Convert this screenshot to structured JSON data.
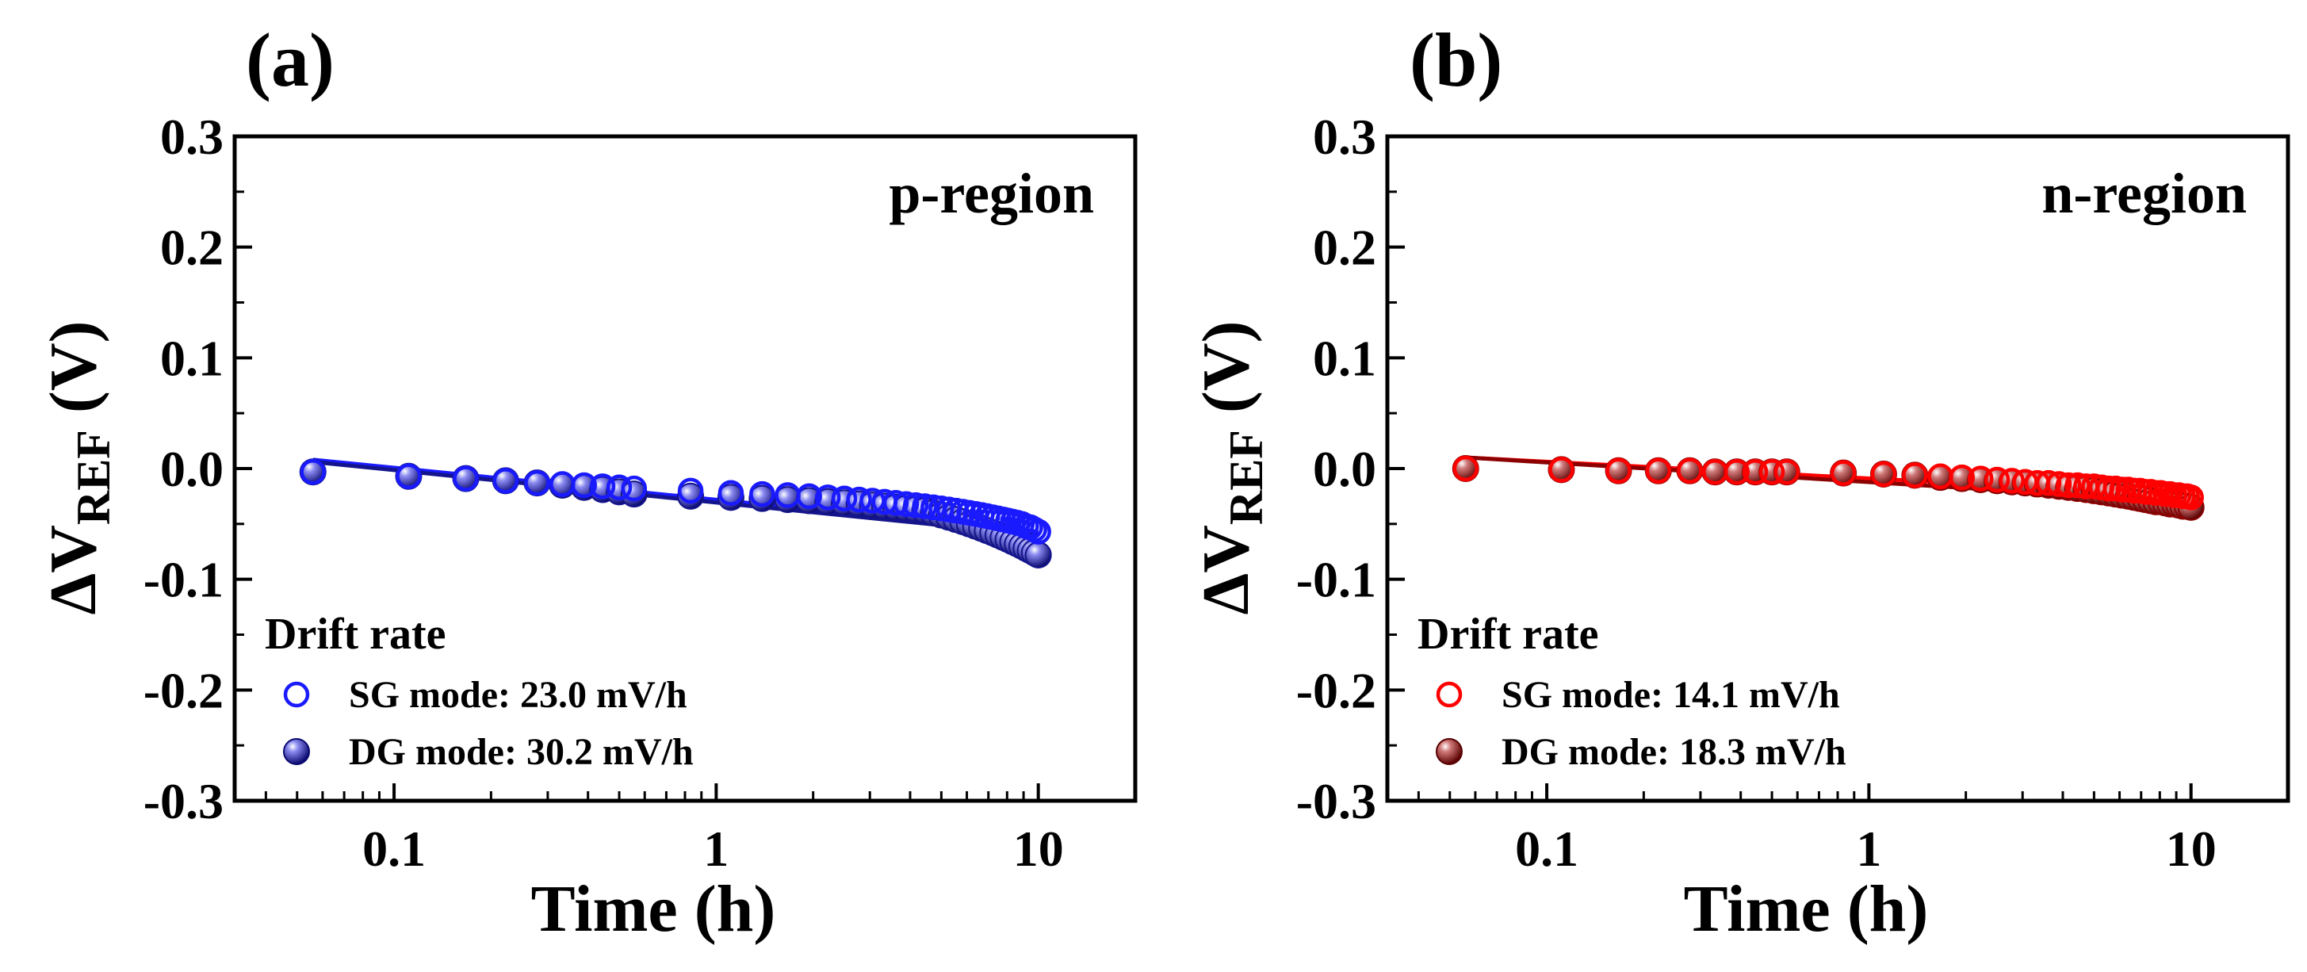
{
  "chart_data": [
    {
      "type": "scatter",
      "panel_label": "(a)",
      "title": "p-region",
      "title_color": "#1a1aff",
      "xlabel": "Time (h)",
      "ylabel_main": "ΔV",
      "ylabel_sub": "REF",
      "ylabel_unit": " (V)",
      "xscale": "log",
      "xlim": [
        0.032,
        20
      ],
      "ylim": [
        -0.3,
        0.3
      ],
      "x_ticks": [
        0.1,
        1,
        10
      ],
      "x_tick_labels": [
        "0.1",
        "1",
        "10"
      ],
      "y_ticks": [
        -0.3,
        -0.2,
        -0.1,
        0.0,
        0.1,
        0.2,
        0.3
      ],
      "y_tick_labels": [
        "-0.3",
        "-0.2",
        "-0.1",
        "0.0",
        "0.1",
        "0.2",
        "0.3"
      ],
      "legend_title": "Drift rate",
      "series": [
        {
          "name": "SG mode: 23.0 mV/h",
          "marker": "open",
          "color": "#1a1aff",
          "x": [
            0.056,
            0.111,
            0.167,
            0.222,
            0.278,
            0.333,
            0.389,
            0.444,
            0.5,
            0.556,
            0.833,
            1.111,
            1.389,
            1.667,
            1.944,
            2.222,
            2.5,
            2.778,
            3.056,
            3.333,
            3.611,
            3.889,
            4.167,
            4.444,
            4.722,
            5.0,
            5.278,
            5.556,
            5.833,
            6.111,
            6.389,
            6.667,
            6.944,
            7.222,
            7.5,
            7.778,
            8.056,
            8.333,
            8.611,
            8.889,
            9.167,
            9.444,
            9.722,
            10.0
          ],
          "y": [
            -0.003,
            -0.007,
            -0.009,
            -0.011,
            -0.013,
            -0.014,
            -0.015,
            -0.016,
            -0.017,
            -0.018,
            -0.02,
            -0.022,
            -0.023,
            -0.024,
            -0.025,
            -0.026,
            -0.027,
            -0.028,
            -0.029,
            -0.03,
            -0.031,
            -0.032,
            -0.033,
            -0.034,
            -0.035,
            -0.036,
            -0.037,
            -0.038,
            -0.039,
            -0.04,
            -0.041,
            -0.042,
            -0.043,
            -0.044,
            -0.045,
            -0.046,
            -0.047,
            -0.048,
            -0.049,
            -0.05,
            -0.052,
            -0.053,
            -0.055,
            -0.057
          ]
        },
        {
          "name": "DG mode: 30.2 mV/h",
          "marker": "filled",
          "color": "#14148c",
          "x": [
            0.056,
            0.111,
            0.167,
            0.222,
            0.278,
            0.333,
            0.389,
            0.444,
            0.5,
            0.556,
            0.833,
            1.111,
            1.389,
            1.667,
            1.944,
            2.222,
            2.5,
            2.778,
            3.056,
            3.333,
            3.611,
            3.889,
            4.167,
            4.444,
            4.722,
            5.0,
            5.278,
            5.556,
            5.833,
            6.111,
            6.389,
            6.667,
            6.944,
            7.222,
            7.5,
            7.778,
            8.056,
            8.333,
            8.611,
            8.889,
            9.167,
            9.444,
            9.722,
            10.0
          ],
          "y": [
            -0.003,
            -0.007,
            -0.009,
            -0.011,
            -0.013,
            -0.015,
            -0.017,
            -0.019,
            -0.021,
            -0.023,
            -0.025,
            -0.026,
            -0.027,
            -0.028,
            -0.029,
            -0.03,
            -0.031,
            -0.032,
            -0.033,
            -0.034,
            -0.035,
            -0.036,
            -0.037,
            -0.038,
            -0.04,
            -0.042,
            -0.044,
            -0.046,
            -0.048,
            -0.05,
            -0.052,
            -0.054,
            -0.056,
            -0.058,
            -0.06,
            -0.062,
            -0.064,
            -0.066,
            -0.068,
            -0.07,
            -0.072,
            -0.074,
            -0.076,
            -0.078
          ]
        }
      ],
      "fit_lines": [
        {
          "color": "#1a1aff",
          "x": [
            0.056,
            10
          ],
          "y": [
            0.008,
            -0.057
          ]
        },
        {
          "color": "#14148c",
          "x": [
            0.056,
            10
          ],
          "y": [
            0.006,
            -0.06
          ]
        }
      ]
    },
    {
      "type": "scatter",
      "panel_label": "(b)",
      "title": "n-region",
      "title_color": "#ff0000",
      "xlabel": "Time (h)",
      "ylabel_main": "ΔV",
      "ylabel_sub": "REF",
      "ylabel_unit": " (V)",
      "xscale": "log",
      "xlim": [
        0.032,
        20
      ],
      "ylim": [
        -0.3,
        0.3
      ],
      "x_ticks": [
        0.1,
        1,
        10
      ],
      "x_tick_labels": [
        "0.1",
        "1",
        "10"
      ],
      "y_ticks": [
        -0.3,
        -0.2,
        -0.1,
        0.0,
        0.1,
        0.2,
        0.3
      ],
      "y_tick_labels": [
        "-0.3",
        "-0.2",
        "-0.1",
        "0.0",
        "0.1",
        "0.2",
        "0.3"
      ],
      "legend_title": "Drift rate",
      "series": [
        {
          "name": "SG mode: 14.1 mV/h",
          "marker": "open",
          "color": "#ff0000",
          "x": [
            0.056,
            0.111,
            0.167,
            0.222,
            0.278,
            0.333,
            0.389,
            0.444,
            0.5,
            0.556,
            0.833,
            1.111,
            1.389,
            1.667,
            1.944,
            2.222,
            2.5,
            2.778,
            3.056,
            3.333,
            3.611,
            3.889,
            4.167,
            4.444,
            4.722,
            5.0,
            5.278,
            5.556,
            5.833,
            6.111,
            6.389,
            6.667,
            6.944,
            7.222,
            7.5,
            7.778,
            8.056,
            8.333,
            8.611,
            8.889,
            9.167,
            9.444,
            9.722,
            10.0
          ],
          "y": [
            0.0,
            -0.001,
            -0.002,
            -0.002,
            -0.002,
            -0.003,
            -0.003,
            -0.003,
            -0.003,
            -0.003,
            -0.004,
            -0.005,
            -0.006,
            -0.007,
            -0.008,
            -0.009,
            -0.01,
            -0.011,
            -0.012,
            -0.013,
            -0.013,
            -0.014,
            -0.015,
            -0.015,
            -0.016,
            -0.016,
            -0.017,
            -0.018,
            -0.018,
            -0.019,
            -0.019,
            -0.02,
            -0.02,
            -0.021,
            -0.021,
            -0.022,
            -0.022,
            -0.023,
            -0.023,
            -0.024,
            -0.024,
            -0.025,
            -0.025,
            -0.026
          ]
        },
        {
          "name": "DG mode: 18.3 mV/h",
          "marker": "filled",
          "color": "#8b0000",
          "x": [
            0.056,
            0.111,
            0.167,
            0.222,
            0.278,
            0.333,
            0.389,
            0.444,
            0.5,
            0.556,
            0.833,
            1.111,
            1.389,
            1.667,
            1.944,
            2.222,
            2.5,
            2.778,
            3.056,
            3.333,
            3.611,
            3.889,
            4.167,
            4.444,
            4.722,
            5.0,
            5.278,
            5.556,
            5.833,
            6.111,
            6.389,
            6.667,
            6.944,
            7.222,
            7.5,
            7.778,
            8.056,
            8.333,
            8.611,
            8.889,
            9.167,
            9.444,
            9.722,
            10.0
          ],
          "y": [
            0.0,
            -0.001,
            -0.002,
            -0.002,
            -0.002,
            -0.003,
            -0.003,
            -0.003,
            -0.003,
            -0.003,
            -0.004,
            -0.005,
            -0.006,
            -0.008,
            -0.009,
            -0.01,
            -0.011,
            -0.012,
            -0.013,
            -0.014,
            -0.015,
            -0.016,
            -0.017,
            -0.018,
            -0.019,
            -0.02,
            -0.021,
            -0.022,
            -0.023,
            -0.024,
            -0.025,
            -0.026,
            -0.027,
            -0.028,
            -0.029,
            -0.03,
            -0.03,
            -0.031,
            -0.032,
            -0.032,
            -0.033,
            -0.034,
            -0.034,
            -0.035
          ]
        }
      ],
      "fit_lines": [
        {
          "color": "#ff0000",
          "x": [
            0.056,
            10
          ],
          "y": [
            0.01,
            -0.024
          ]
        },
        {
          "color": "#8b0000",
          "x": [
            0.056,
            10
          ],
          "y": [
            0.01,
            -0.03
          ]
        }
      ]
    }
  ]
}
